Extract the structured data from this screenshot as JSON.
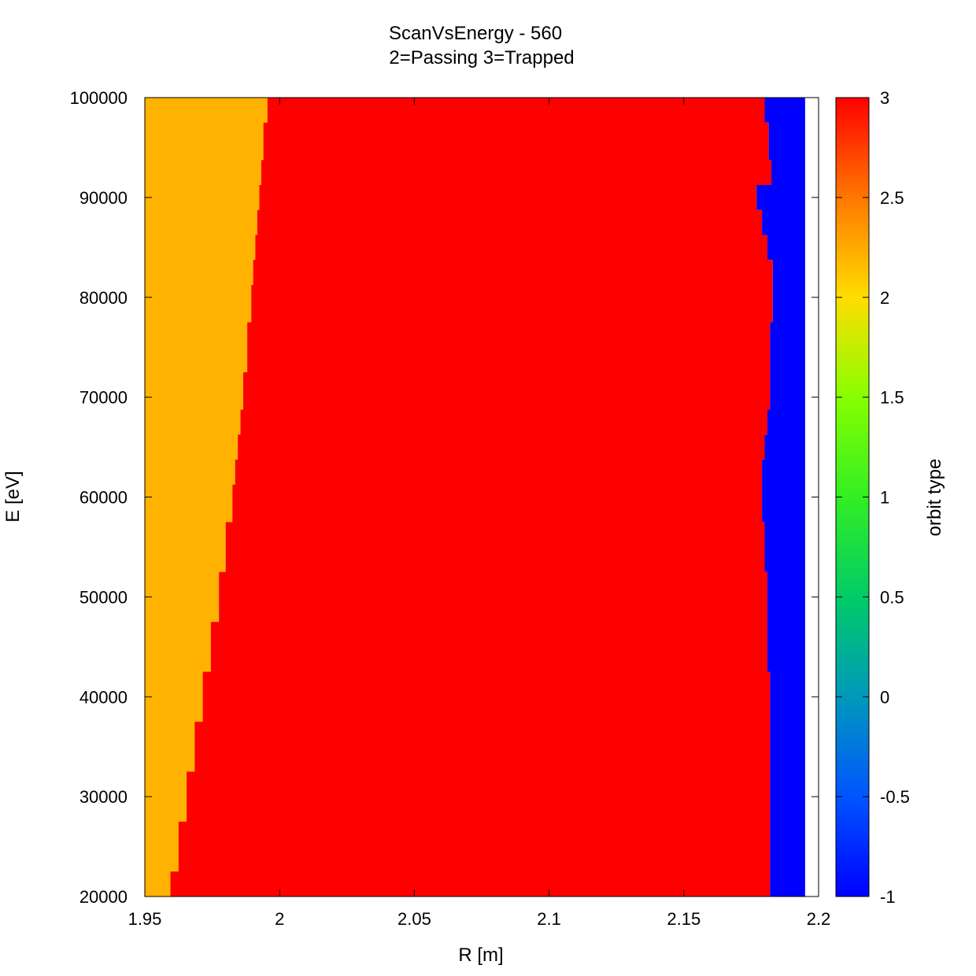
{
  "chart_data": {
    "type": "heatmap",
    "title": "ScanVsEnergy - 560",
    "subtitle": "2=Passing 3=Trapped",
    "xlabel": "R [m]",
    "ylabel": "E [eV]",
    "colorbar_label": "orbit type",
    "xlim": [
      1.95,
      2.2
    ],
    "ylim": [
      20000,
      100000
    ],
    "clim": [
      -1,
      3
    ],
    "x_ticks": [
      "1.95",
      "2",
      "2.05",
      "2.1",
      "2.15",
      "2.2"
    ],
    "y_ticks": [
      "20000",
      "30000",
      "40000",
      "50000",
      "60000",
      "70000",
      "80000",
      "90000",
      "100000"
    ],
    "colorbar_ticks": [
      "-1",
      "-0.5",
      "0",
      "0.5",
      "1",
      "1.5",
      "2",
      "2.5",
      "3"
    ],
    "grid_r_max": 2.195,
    "regions": [
      {
        "value": 2,
        "meaning": "Passing",
        "color": "#ffb300"
      },
      {
        "value": 3,
        "meaning": "Trapped",
        "color": "#ff0000"
      },
      {
        "value": -1,
        "color": "#0000ff"
      }
    ],
    "boundaries": {
      "E": [
        20000,
        25000,
        30000,
        35000,
        40000,
        45000,
        50000,
        55000,
        60000,
        62500,
        65000,
        67500,
        70000,
        75000,
        80000,
        82500,
        85000,
        87500,
        90000,
        92500,
        95000,
        100000
      ],
      "R_passing_trapped": [
        1.9595,
        1.9625,
        1.9655,
        1.9685,
        1.9715,
        1.9745,
        1.9775,
        1.98,
        1.9825,
        1.9835,
        1.9845,
        1.9855,
        1.9865,
        1.988,
        1.9895,
        1.9902,
        1.991,
        1.9917,
        1.9925,
        1.9932,
        1.994,
        1.9955
      ],
      "R_trapped_lost": [
        2.182,
        2.182,
        2.182,
        2.182,
        2.182,
        2.181,
        2.181,
        2.18,
        2.179,
        2.179,
        2.18,
        2.181,
        2.182,
        2.182,
        2.183,
        2.183,
        2.181,
        2.179,
        2.177,
        2.1825,
        2.1815,
        2.18
      ]
    }
  }
}
